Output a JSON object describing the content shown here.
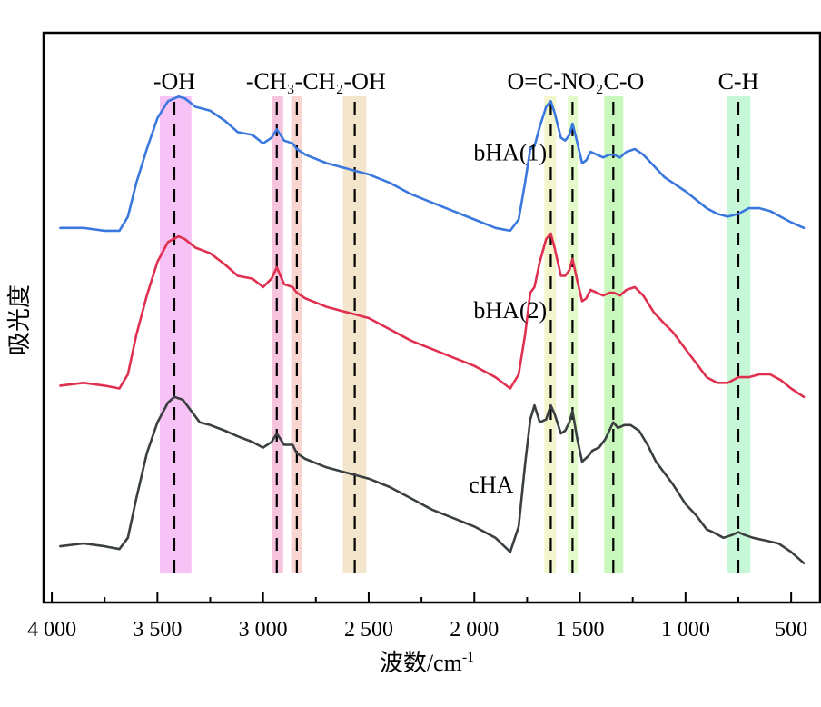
{
  "chart_data": {
    "type": "line",
    "title": "",
    "xlabel": "波数/cm",
    "xlabel_superscript": "-1",
    "ylabel": "吸光度",
    "xlim": [
      4039,
      363
    ],
    "x_reversed": true,
    "ylim": [
      0,
      1
    ],
    "grid": false,
    "y_ticks_shown": false,
    "x_ticks": [
      {
        "value": 4000,
        "label": "4 000"
      },
      {
        "value": 3500,
        "label": "3 500"
      },
      {
        "value": 3000,
        "label": "3 000"
      },
      {
        "value": 2500,
        "label": "2 500"
      },
      {
        "value": 2000,
        "label": "2 000"
      },
      {
        "value": 1500,
        "label": "1 500"
      },
      {
        "value": 1000,
        "label": "1 000"
      },
      {
        "value": 500,
        "label": "500"
      }
    ],
    "x_minor_ticks": [
      3750,
      3250,
      2750,
      2250,
      1750,
      1250,
      750
    ],
    "bands": [
      {
        "name": "OH",
        "center": 3420,
        "from": 3489,
        "to": 3339,
        "color": "#f7c2f5"
      },
      {
        "name": "CH3",
        "center": 2935,
        "from": 2957,
        "to": 2905,
        "color": "#f6c4dc"
      },
      {
        "name": "CH2",
        "center": 2840,
        "from": 2867,
        "to": 2815,
        "color": "#f8d6cf"
      },
      {
        "name": "OH2",
        "center": 2566,
        "from": 2622,
        "to": 2511,
        "color": "#f3e6cd"
      },
      {
        "name": "C=O",
        "center": 1638,
        "from": 1669,
        "to": 1613,
        "color": "#f3f5cd"
      },
      {
        "name": "C-N",
        "center": 1535,
        "from": 1557,
        "to": 1510,
        "color": "#e3facb"
      },
      {
        "name": "NO2-CO",
        "center": 1342,
        "from": 1385,
        "to": 1295,
        "color": "#c8f8bc"
      },
      {
        "name": "C-H",
        "center": 750,
        "from": 805,
        "to": 693,
        "color": "#c6f8d8"
      }
    ],
    "band_labels": [
      {
        "text": "-OH",
        "at": 3420
      },
      {
        "text": "-CH₃-CH₂-OH",
        "at": 2750
      },
      {
        "text": "O=C-NO₂C-O",
        "at": 1520
      },
      {
        "text": "C-H",
        "at": 750
      }
    ],
    "series": [
      {
        "name": "bHA(1)",
        "color": "#3a78de",
        "label_at": [
          1830,
          0.78
        ],
        "points": [
          [
            3960,
            0.66
          ],
          [
            3850,
            0.66
          ],
          [
            3750,
            0.655
          ],
          [
            3680,
            0.655
          ],
          [
            3640,
            0.68
          ],
          [
            3600,
            0.74
          ],
          [
            3550,
            0.8
          ],
          [
            3500,
            0.855
          ],
          [
            3450,
            0.885
          ],
          [
            3400,
            0.893
          ],
          [
            3370,
            0.89
          ],
          [
            3320,
            0.875
          ],
          [
            3250,
            0.868
          ],
          [
            3180,
            0.85
          ],
          [
            3120,
            0.83
          ],
          [
            3050,
            0.825
          ],
          [
            3000,
            0.81
          ],
          [
            2960,
            0.82
          ],
          [
            2935,
            0.835
          ],
          [
            2900,
            0.815
          ],
          [
            2860,
            0.81
          ],
          [
            2840,
            0.8
          ],
          [
            2800,
            0.79
          ],
          [
            2700,
            0.775
          ],
          [
            2600,
            0.765
          ],
          [
            2500,
            0.755
          ],
          [
            2400,
            0.74
          ],
          [
            2300,
            0.72
          ],
          [
            2200,
            0.705
          ],
          [
            2100,
            0.69
          ],
          [
            2000,
            0.675
          ],
          [
            1900,
            0.66
          ],
          [
            1830,
            0.655
          ],
          [
            1790,
            0.675
          ],
          [
            1760,
            0.74
          ],
          [
            1735,
            0.8
          ],
          [
            1715,
            0.805
          ],
          [
            1690,
            0.84
          ],
          [
            1660,
            0.875
          ],
          [
            1638,
            0.885
          ],
          [
            1620,
            0.865
          ],
          [
            1590,
            0.82
          ],
          [
            1570,
            0.815
          ],
          [
            1550,
            0.825
          ],
          [
            1535,
            0.845
          ],
          [
            1515,
            0.815
          ],
          [
            1490,
            0.775
          ],
          [
            1470,
            0.78
          ],
          [
            1450,
            0.795
          ],
          [
            1420,
            0.79
          ],
          [
            1390,
            0.785
          ],
          [
            1360,
            0.79
          ],
          [
            1340,
            0.79
          ],
          [
            1310,
            0.785
          ],
          [
            1280,
            0.795
          ],
          [
            1240,
            0.8
          ],
          [
            1200,
            0.79
          ],
          [
            1150,
            0.77
          ],
          [
            1100,
            0.75
          ],
          [
            1060,
            0.74
          ],
          [
            1000,
            0.725
          ],
          [
            950,
            0.71
          ],
          [
            900,
            0.695
          ],
          [
            850,
            0.685
          ],
          [
            800,
            0.68
          ],
          [
            750,
            0.685
          ],
          [
            700,
            0.695
          ],
          [
            650,
            0.695
          ],
          [
            600,
            0.69
          ],
          [
            550,
            0.68
          ],
          [
            500,
            0.67
          ],
          [
            440,
            0.66
          ]
        ]
      },
      {
        "name": "bHA(2)",
        "color": "#e0304f",
        "label_at": [
          1830,
          0.5
        ],
        "points": [
          [
            3960,
            0.38
          ],
          [
            3850,
            0.385
          ],
          [
            3750,
            0.38
          ],
          [
            3680,
            0.375
          ],
          [
            3640,
            0.4
          ],
          [
            3600,
            0.47
          ],
          [
            3550,
            0.54
          ],
          [
            3500,
            0.6
          ],
          [
            3450,
            0.635
          ],
          [
            3400,
            0.645
          ],
          [
            3370,
            0.64
          ],
          [
            3320,
            0.625
          ],
          [
            3250,
            0.615
          ],
          [
            3180,
            0.595
          ],
          [
            3120,
            0.575
          ],
          [
            3050,
            0.57
          ],
          [
            3000,
            0.555
          ],
          [
            2960,
            0.57
          ],
          [
            2935,
            0.59
          ],
          [
            2900,
            0.56
          ],
          [
            2860,
            0.555
          ],
          [
            2840,
            0.545
          ],
          [
            2800,
            0.535
          ],
          [
            2700,
            0.52
          ],
          [
            2600,
            0.51
          ],
          [
            2500,
            0.5
          ],
          [
            2400,
            0.48
          ],
          [
            2300,
            0.46
          ],
          [
            2200,
            0.445
          ],
          [
            2100,
            0.43
          ],
          [
            2000,
            0.415
          ],
          [
            1900,
            0.395
          ],
          [
            1830,
            0.375
          ],
          [
            1790,
            0.4
          ],
          [
            1760,
            0.47
          ],
          [
            1735,
            0.545
          ],
          [
            1715,
            0.555
          ],
          [
            1690,
            0.6
          ],
          [
            1660,
            0.64
          ],
          [
            1638,
            0.65
          ],
          [
            1620,
            0.625
          ],
          [
            1590,
            0.575
          ],
          [
            1570,
            0.575
          ],
          [
            1550,
            0.585
          ],
          [
            1535,
            0.605
          ],
          [
            1515,
            0.57
          ],
          [
            1490,
            0.53
          ],
          [
            1470,
            0.535
          ],
          [
            1450,
            0.55
          ],
          [
            1420,
            0.545
          ],
          [
            1390,
            0.54
          ],
          [
            1360,
            0.545
          ],
          [
            1340,
            0.545
          ],
          [
            1310,
            0.54
          ],
          [
            1280,
            0.55
          ],
          [
            1240,
            0.555
          ],
          [
            1200,
            0.54
          ],
          [
            1150,
            0.51
          ],
          [
            1100,
            0.49
          ],
          [
            1060,
            0.475
          ],
          [
            1000,
            0.445
          ],
          [
            950,
            0.42
          ],
          [
            900,
            0.395
          ],
          [
            850,
            0.385
          ],
          [
            800,
            0.385
          ],
          [
            750,
            0.395
          ],
          [
            700,
            0.395
          ],
          [
            650,
            0.4
          ],
          [
            600,
            0.4
          ],
          [
            550,
            0.39
          ],
          [
            500,
            0.375
          ],
          [
            440,
            0.36
          ]
        ]
      },
      {
        "name": "cHA",
        "color": "#3a3f42",
        "label_at": [
          1920,
          0.19
        ],
        "points": [
          [
            3960,
            0.095
          ],
          [
            3850,
            0.1
          ],
          [
            3750,
            0.095
          ],
          [
            3680,
            0.09
          ],
          [
            3640,
            0.11
          ],
          [
            3600,
            0.18
          ],
          [
            3550,
            0.26
          ],
          [
            3500,
            0.315
          ],
          [
            3450,
            0.35
          ],
          [
            3420,
            0.36
          ],
          [
            3380,
            0.355
          ],
          [
            3340,
            0.335
          ],
          [
            3300,
            0.315
          ],
          [
            3250,
            0.31
          ],
          [
            3180,
            0.3
          ],
          [
            3120,
            0.29
          ],
          [
            3050,
            0.28
          ],
          [
            3000,
            0.27
          ],
          [
            2960,
            0.28
          ],
          [
            2935,
            0.295
          ],
          [
            2900,
            0.275
          ],
          [
            2860,
            0.275
          ],
          [
            2840,
            0.26
          ],
          [
            2800,
            0.25
          ],
          [
            2700,
            0.235
          ],
          [
            2600,
            0.225
          ],
          [
            2500,
            0.215
          ],
          [
            2400,
            0.2
          ],
          [
            2300,
            0.18
          ],
          [
            2200,
            0.16
          ],
          [
            2100,
            0.145
          ],
          [
            2000,
            0.13
          ],
          [
            1900,
            0.11
          ],
          [
            1830,
            0.085
          ],
          [
            1790,
            0.13
          ],
          [
            1760,
            0.24
          ],
          [
            1735,
            0.32
          ],
          [
            1715,
            0.345
          ],
          [
            1690,
            0.315
          ],
          [
            1660,
            0.32
          ],
          [
            1638,
            0.345
          ],
          [
            1620,
            0.33
          ],
          [
            1590,
            0.295
          ],
          [
            1570,
            0.3
          ],
          [
            1550,
            0.315
          ],
          [
            1535,
            0.335
          ],
          [
            1515,
            0.29
          ],
          [
            1490,
            0.245
          ],
          [
            1460,
            0.255
          ],
          [
            1440,
            0.265
          ],
          [
            1410,
            0.27
          ],
          [
            1380,
            0.285
          ],
          [
            1342,
            0.315
          ],
          [
            1320,
            0.305
          ],
          [
            1290,
            0.31
          ],
          [
            1260,
            0.31
          ],
          [
            1220,
            0.3
          ],
          [
            1180,
            0.275
          ],
          [
            1140,
            0.245
          ],
          [
            1100,
            0.225
          ],
          [
            1060,
            0.205
          ],
          [
            1000,
            0.17
          ],
          [
            950,
            0.15
          ],
          [
            900,
            0.125
          ],
          [
            870,
            0.12
          ],
          [
            820,
            0.11
          ],
          [
            780,
            0.115
          ],
          [
            750,
            0.12
          ],
          [
            720,
            0.115
          ],
          [
            680,
            0.11
          ],
          [
            620,
            0.105
          ],
          [
            560,
            0.1
          ],
          [
            500,
            0.085
          ],
          [
            440,
            0.065
          ]
        ]
      }
    ]
  }
}
